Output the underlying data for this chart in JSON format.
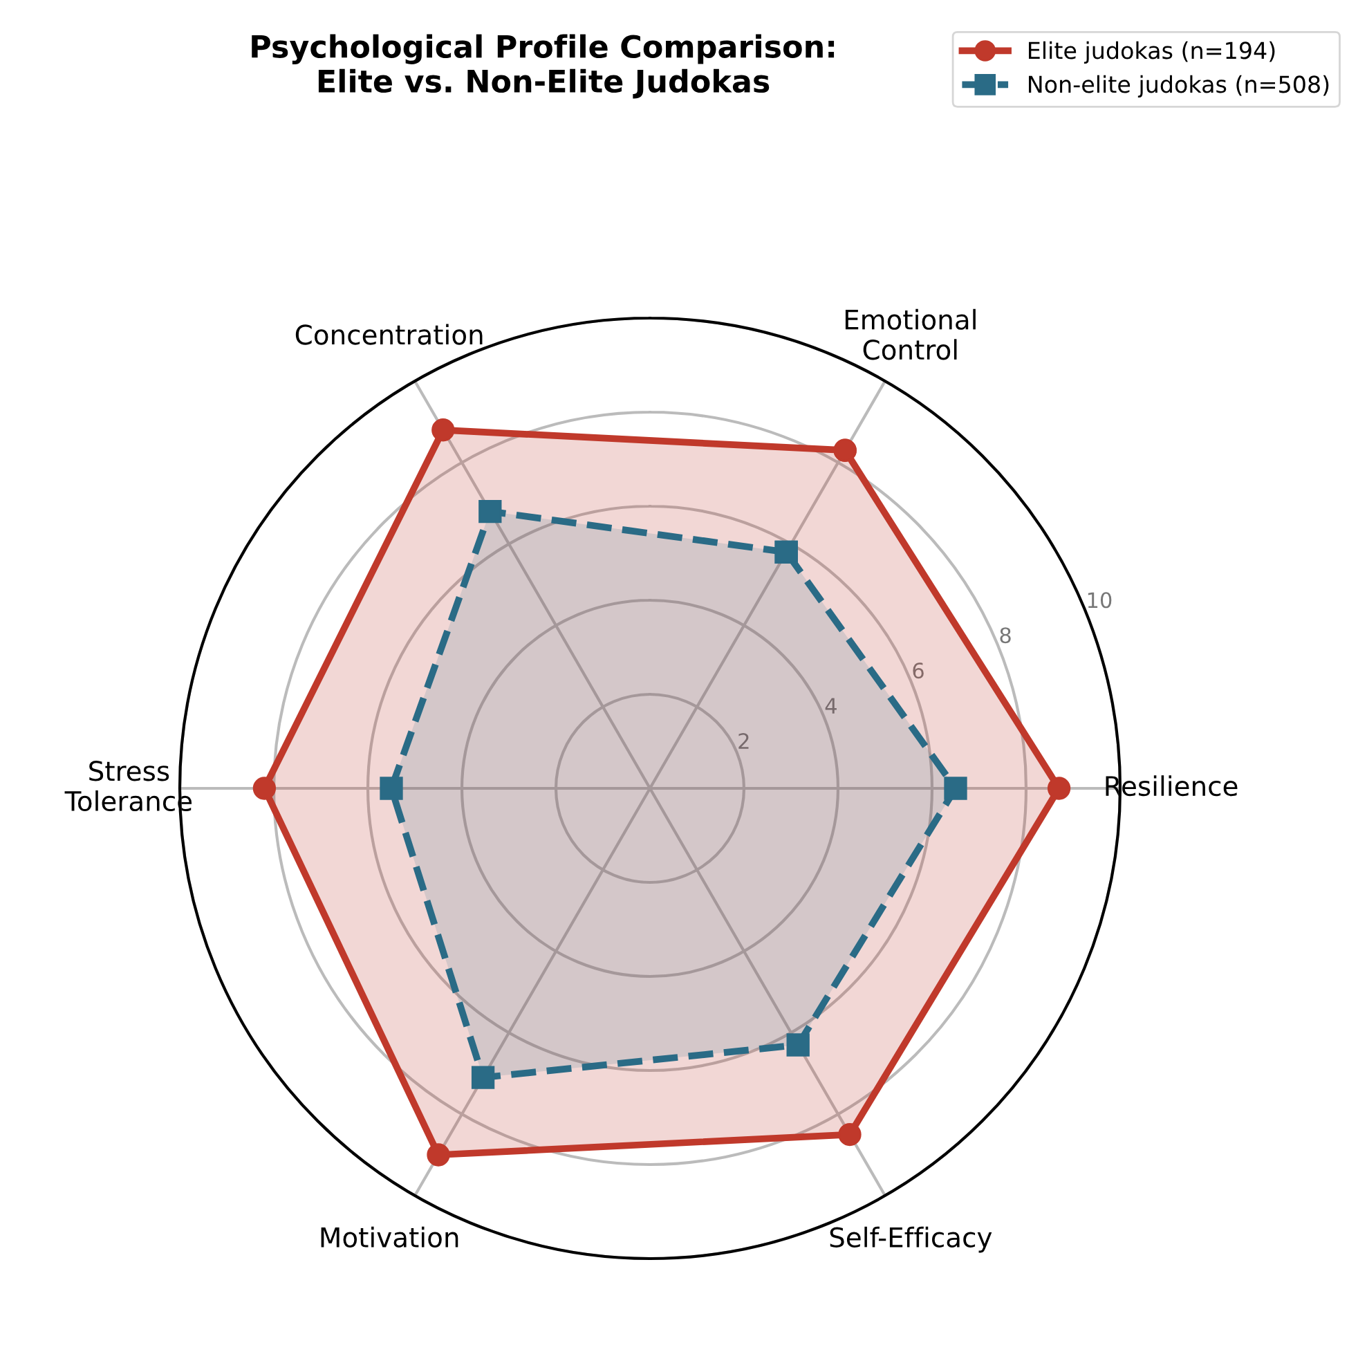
{
  "chart_data": {
    "type": "radar",
    "title": "Psychological Profile Comparison:\nElite vs. Non-Elite Judokas",
    "categories": [
      "Emotional\nControl",
      "Resilience",
      "Self-Efficacy",
      "Motivation",
      "Stress\nTolerance",
      "Concentration"
    ],
    "series": [
      {
        "name": "Elite judokas (n=194)",
        "color": "#c0392b",
        "values": [
          8.3,
          8.7,
          8.5,
          9.0,
          8.2,
          8.8
        ],
        "marker": "circle",
        "line_style": "solid"
      },
      {
        "name": "Non-elite judokas (n=508)",
        "color": "#2a6b86",
        "values": [
          5.8,
          6.5,
          6.3,
          7.1,
          5.5,
          6.8
        ],
        "marker": "square",
        "line_style": "dashed"
      }
    ],
    "ylim": [
      0,
      10
    ],
    "yticks": [
      2,
      4,
      6,
      8,
      10
    ],
    "grid": true,
    "legend": "top right"
  }
}
